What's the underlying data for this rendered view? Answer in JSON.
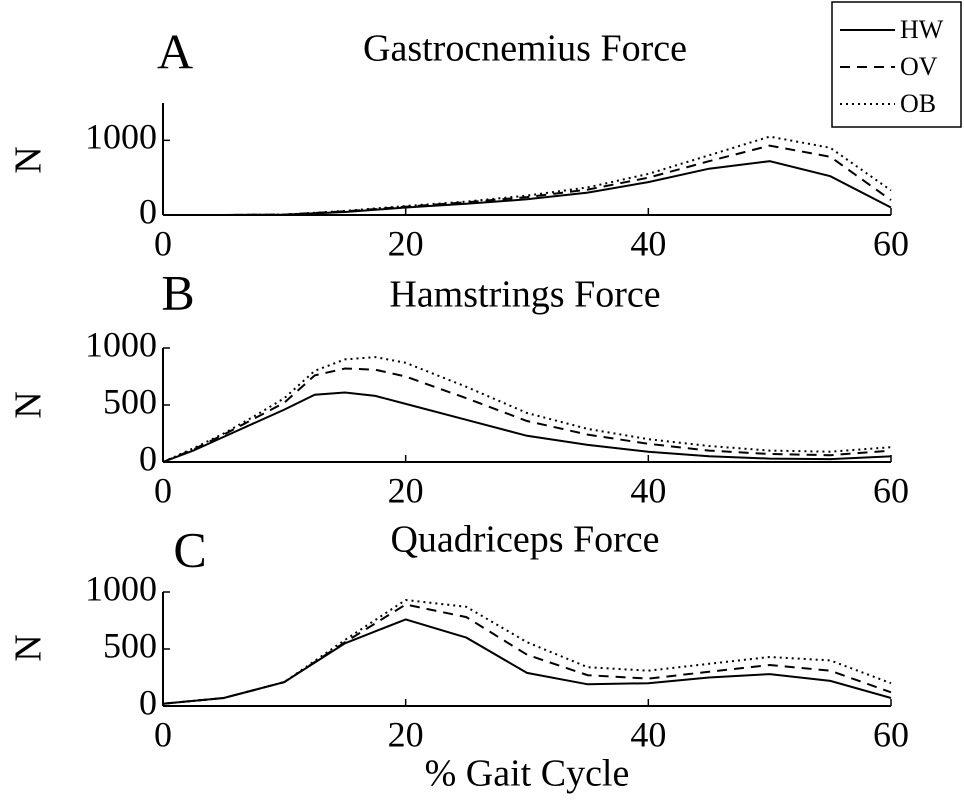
{
  "chart_data": [
    {
      "type": "line",
      "panel_label": "A",
      "title": "Gastrocnemius Force",
      "ylabel": "N",
      "legend": "upper right",
      "x": [
        0,
        5,
        10,
        15,
        20,
        25,
        30,
        35,
        40,
        45,
        50,
        55,
        60
      ],
      "xlim": [
        0,
        60
      ],
      "xticks": [
        0,
        20,
        40,
        60
      ],
      "ylim": [
        0,
        1500
      ],
      "yticks": [
        0,
        1000
      ],
      "series": [
        {
          "name": "HW",
          "color": "#000000",
          "dash": "solid",
          "values": [
            0,
            0,
            5,
            40,
            100,
            150,
            210,
            300,
            440,
            620,
            720,
            520,
            100
          ]
        },
        {
          "name": "OV",
          "color": "#000000",
          "dash": "dashed",
          "values": [
            0,
            0,
            5,
            50,
            110,
            170,
            240,
            340,
            500,
            720,
            930,
            780,
            200
          ]
        },
        {
          "name": "OB",
          "color": "#000000",
          "dash": "dotted",
          "values": [
            0,
            0,
            5,
            55,
            120,
            180,
            260,
            370,
            550,
            800,
            1050,
            900,
            330
          ]
        }
      ]
    },
    {
      "type": "line",
      "panel_label": "B",
      "title": "Hamstrings Force",
      "ylabel": "N",
      "x": [
        0,
        2.5,
        5,
        7.5,
        10,
        12.5,
        15,
        17.5,
        20,
        25,
        30,
        35,
        40,
        45,
        50,
        55,
        60
      ],
      "xlim": [
        0,
        60
      ],
      "xticks": [
        0,
        20,
        40,
        60
      ],
      "ylim": [
        0,
        1000
      ],
      "yticks": [
        0,
        500,
        1000
      ],
      "series": [
        {
          "color": "#000000",
          "dash": "solid",
          "values": [
            0,
            100,
            220,
            340,
            460,
            590,
            610,
            580,
            510,
            370,
            230,
            150,
            90,
            50,
            30,
            25,
            50
          ]
        },
        {
          "color": "#000000",
          "dash": "dashed",
          "values": [
            0,
            110,
            240,
            380,
            520,
            760,
            820,
            810,
            750,
            560,
            360,
            240,
            160,
            100,
            70,
            60,
            100
          ]
        },
        {
          "color": "#000000",
          "dash": "dotted",
          "values": [
            0,
            120,
            250,
            400,
            560,
            800,
            900,
            920,
            870,
            660,
            430,
            290,
            200,
            140,
            100,
            90,
            130
          ]
        }
      ]
    },
    {
      "type": "line",
      "panel_label": "C",
      "title": "Quadriceps Force",
      "ylabel": "N",
      "xlabel": "% Gait Cycle",
      "x": [
        0,
        5,
        10,
        15,
        20,
        25,
        30,
        35,
        40,
        45,
        50,
        55,
        60
      ],
      "xlim": [
        0,
        60
      ],
      "xticks": [
        0,
        20,
        40,
        60
      ],
      "ylim": [
        0,
        1000
      ],
      "yticks": [
        0,
        500,
        1000
      ],
      "series": [
        {
          "color": "#000000",
          "dash": "solid",
          "values": [
            20,
            70,
            210,
            550,
            760,
            600,
            290,
            190,
            200,
            250,
            280,
            220,
            70
          ]
        },
        {
          "color": "#000000",
          "dash": "dashed",
          "values": [
            20,
            70,
            210,
            560,
            890,
            780,
            450,
            270,
            240,
            300,
            360,
            310,
            120
          ]
        },
        {
          "color": "#000000",
          "dash": "dotted",
          "values": [
            20,
            70,
            210,
            580,
            930,
            870,
            560,
            340,
            310,
            370,
            430,
            400,
            200
          ]
        }
      ]
    }
  ]
}
